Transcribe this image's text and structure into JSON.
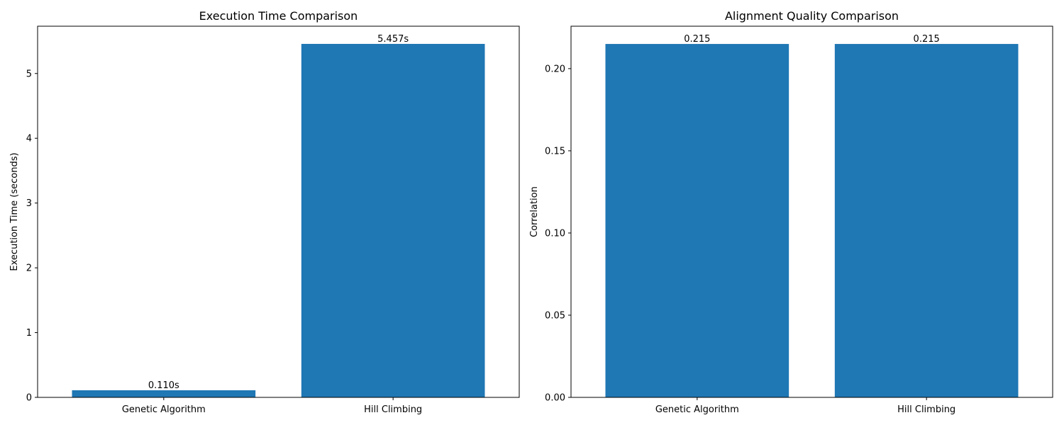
{
  "chart_data": [
    {
      "type": "bar",
      "title": "Execution Time Comparison",
      "xlabel": "",
      "ylabel": "Execution Time (seconds)",
      "categories": [
        "Genetic Algorithm",
        "Hill Climbing"
      ],
      "values": [
        0.11,
        5.457
      ],
      "data_labels": [
        "0.110s",
        "5.457s"
      ],
      "ylim": [
        0,
        5.73
      ],
      "yticks": [
        0,
        1,
        2,
        3,
        4,
        5
      ],
      "ytick_labels": [
        "0",
        "1",
        "2",
        "3",
        "4",
        "5"
      ],
      "bar_color": "#1f77b4",
      "grid": false,
      "legend": "none"
    },
    {
      "type": "bar",
      "title": "Alignment Quality Comparison",
      "xlabel": "",
      "ylabel": "Correlation",
      "categories": [
        "Genetic Algorithm",
        "Hill Climbing"
      ],
      "values": [
        0.215,
        0.215
      ],
      "data_labels": [
        "0.215",
        "0.215"
      ],
      "ylim": [
        0,
        0.2258
      ],
      "yticks": [
        0,
        0.05,
        0.1,
        0.15,
        0.2
      ],
      "ytick_labels": [
        "0.00",
        "0.05",
        "0.10",
        "0.15",
        "0.20"
      ],
      "bar_color": "#1f77b4",
      "grid": false,
      "legend": "none"
    }
  ]
}
